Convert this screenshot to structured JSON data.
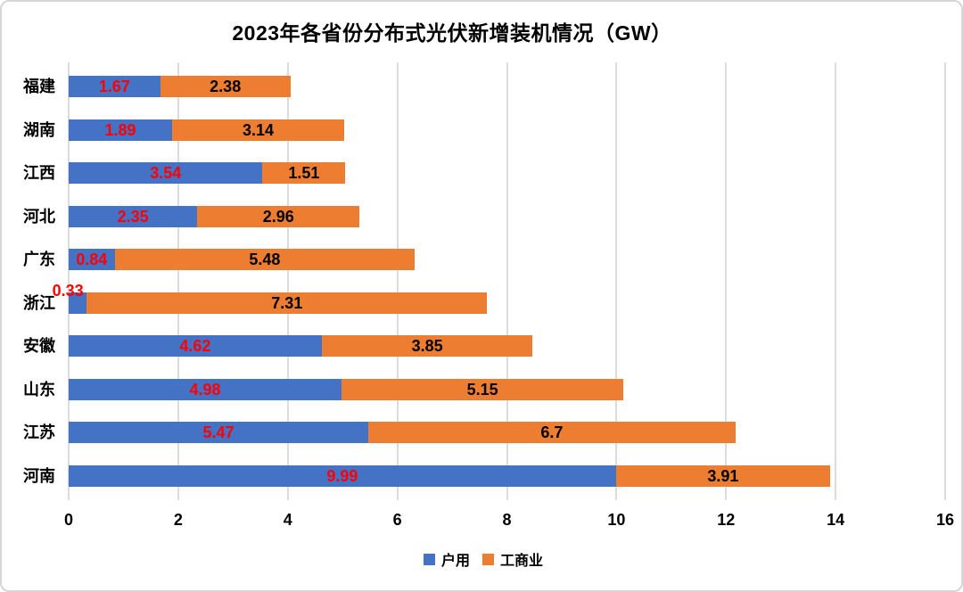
{
  "title": "2023年各省份分布式光伏新增装机情况（GW）",
  "chart_data": {
    "type": "bar",
    "orientation": "horizontal",
    "stacked": true,
    "title": "2023年各省份分布式光伏新增装机情况（GW）",
    "categories": [
      "福建",
      "湖南",
      "江西",
      "河北",
      "广东",
      "浙江",
      "安徽",
      "山东",
      "江苏",
      "河南"
    ],
    "series": [
      {
        "name": "户用",
        "color": "#4472c4",
        "label_color": "#ff0000",
        "values": [
          1.67,
          1.89,
          3.54,
          2.35,
          0.84,
          0.33,
          4.62,
          4.98,
          5.47,
          9.99
        ],
        "labels": [
          "1.67",
          "1.89",
          "3.54",
          "2.35",
          "0.84",
          "0.33",
          "4.62",
          "4.98",
          "5.47",
          "9.99"
        ]
      },
      {
        "name": "工商业",
        "color": "#ed7d31",
        "label_color": "#000000",
        "values": [
          2.38,
          3.14,
          1.51,
          2.96,
          5.48,
          7.31,
          3.85,
          5.15,
          6.7,
          3.91
        ],
        "labels": [
          "2.38",
          "3.14",
          "1.51",
          "2.96",
          "5.48",
          "7.31",
          "3.85",
          "5.15",
          "6.7",
          "3.91"
        ]
      }
    ],
    "x_axis": {
      "min": 0,
      "max": 16,
      "tick_step": 2,
      "tick_labels": [
        "0",
        "2",
        "4",
        "6",
        "8",
        "10",
        "12",
        "14",
        "16"
      ]
    },
    "grid": true,
    "legend": {
      "position": "bottom",
      "entries": [
        {
          "label": "户用",
          "color": "#4472c4"
        },
        {
          "label": "工商业",
          "color": "#ed7d31"
        }
      ]
    },
    "colors": {
      "gridline": "#dcdcdc",
      "background": "#ffffff",
      "frame_border": "#d6d6d6"
    }
  }
}
